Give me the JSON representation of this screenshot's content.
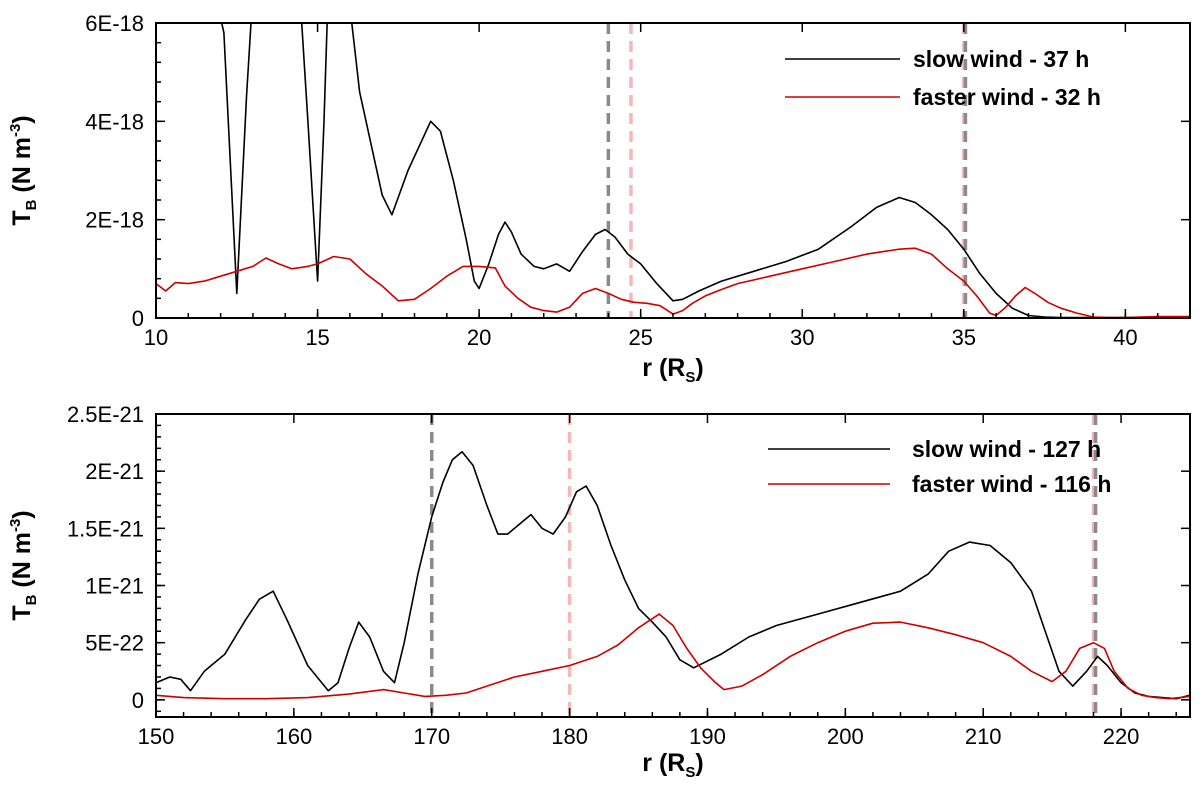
{
  "chart_data": [
    {
      "type": "line",
      "xlabel": "r",
      "xlabel_sub": "S",
      "xlabel_unit_open": "(R",
      "xlabel_unit_close": ")",
      "ylabel": "T",
      "ylabel_sub": "B",
      "ylabel_unit": "(N m",
      "ylabel_exp": "-3",
      "ylabel_close": ")",
      "xlim": [
        10,
        42
      ],
      "ylim": [
        0,
        6e-18
      ],
      "xticks": [
        10,
        15,
        20,
        25,
        30,
        35,
        40
      ],
      "xtick_labels": [
        "10",
        "15",
        "20",
        "25",
        "30",
        "35",
        "40"
      ],
      "yticks": [
        0,
        2e-18,
        4e-18,
        6e-18
      ],
      "ytick_labels": [
        "0",
        "2E-18",
        "4E-18",
        "6E-18"
      ],
      "legend_position": "top-right",
      "vlines": [
        {
          "x": 24.0,
          "color": "#8a8a8a"
        },
        {
          "x": 24.7,
          "color": "#f4b8b8"
        },
        {
          "x": 35.0,
          "color": "#f4b8b8"
        },
        {
          "x": 35.05,
          "color": "#8a8a8a"
        }
      ],
      "series": [
        {
          "name": "slow wind - 37 h",
          "color": "#000000",
          "x": [
            12.0,
            12.1,
            12.5,
            12.8,
            12.95,
            13.5,
            14.5,
            14.7,
            15.0,
            15.2,
            15.3,
            15.5,
            16.0,
            16.05,
            16.3,
            16.7,
            17.0,
            17.3,
            17.8,
            18.5,
            18.8,
            19.2,
            19.6,
            19.85,
            20.0,
            20.3,
            20.6,
            20.8,
            21.0,
            21.3,
            21.7,
            22.0,
            22.4,
            22.8,
            23.2,
            23.6,
            23.9,
            24.2,
            24.6,
            25.0,
            25.5,
            26.0,
            26.3,
            26.8,
            27.5,
            28.5,
            29.5,
            30.5,
            31.5,
            32.3,
            33.0,
            33.5,
            34.0,
            34.5,
            35.0,
            35.5,
            36.0,
            36.5,
            37.0,
            37.5,
            38.0,
            39.0,
            40.0,
            41.0,
            42.0
          ],
          "y": [
            6.1e-18,
            5.8e-18,
            5e-19,
            4.5e-18,
            6.1e-18,
            6.1e-18,
            6.1e-18,
            4e-18,
            7.5e-19,
            4e-18,
            6.1e-18,
            6.1e-18,
            6.1e-18,
            6.05e-18,
            4.6e-18,
            3.4e-18,
            2.5e-18,
            2.1e-18,
            3e-18,
            4e-18,
            3.8e-18,
            2.8e-18,
            1.6e-18,
            7.5e-19,
            6e-19,
            1.1e-18,
            1.7e-18,
            1.95e-18,
            1.75e-18,
            1.3e-18,
            1.05e-18,
            1e-18,
            1.1e-18,
            9.5e-19,
            1.35e-18,
            1.7e-18,
            1.8e-18,
            1.65e-18,
            1.3e-18,
            1.1e-18,
            7e-19,
            3.5e-19,
            3.8e-19,
            5.5e-19,
            7.5e-19,
            9.5e-19,
            1.15e-18,
            1.4e-18,
            1.85e-18,
            2.25e-18,
            2.45e-18,
            2.35e-18,
            2.1e-18,
            1.8e-18,
            1.4e-18,
            9e-19,
            5e-19,
            2e-19,
            5e-20,
            2e-20,
            1e-20,
            1e-20,
            1e-20,
            1e-20,
            1e-20
          ]
        },
        {
          "name": "faster wind - 32 h",
          "color": "#cc0000",
          "x": [
            10.0,
            10.3,
            10.6,
            11.0,
            11.5,
            12.0,
            12.5,
            13.0,
            13.4,
            13.8,
            14.2,
            14.7,
            15.0,
            15.5,
            16.0,
            16.5,
            17.0,
            17.5,
            18.0,
            18.5,
            19.0,
            19.5,
            20.0,
            20.5,
            20.8,
            21.2,
            21.6,
            22.0,
            22.4,
            22.8,
            23.2,
            23.6,
            24.0,
            24.4,
            24.8,
            25.2,
            25.6,
            26.0,
            26.3,
            26.6,
            27.0,
            27.5,
            28.0,
            29.0,
            30.0,
            31.0,
            32.0,
            33.0,
            33.5,
            34.0,
            34.5,
            35.0,
            35.4,
            35.8,
            36.0,
            36.3,
            36.6,
            36.9,
            37.2,
            37.6,
            38.0,
            38.5,
            39.0,
            39.5,
            40.0,
            41.0,
            42.0
          ],
          "y": [
            7e-19,
            5.5e-19,
            7.2e-19,
            7e-19,
            7.5e-19,
            8.5e-19,
            9.5e-19,
            1.05e-18,
            1.22e-18,
            1.1e-18,
            1e-18,
            1.05e-18,
            1.1e-18,
            1.25e-18,
            1.2e-18,
            9e-19,
            6.5e-19,
            3.5e-19,
            3.8e-19,
            6e-19,
            8.5e-19,
            1.05e-18,
            1.05e-18,
            1.02e-18,
            6.5e-19,
            4e-19,
            2.2e-19,
            1.5e-19,
            1.2e-19,
            2.2e-19,
            5e-19,
            6e-19,
            5e-19,
            3.8e-19,
            3.2e-19,
            3e-19,
            2.5e-19,
            8e-20,
            1.5e-19,
            3e-19,
            4.5e-19,
            5.8e-19,
            7e-19,
            8.5e-19,
            1e-18,
            1.15e-18,
            1.3e-18,
            1.4e-18,
            1.42e-18,
            1.3e-18,
            1e-18,
            7.5e-19,
            4.5e-19,
            1e-19,
            5e-20,
            2.2e-19,
            4.5e-19,
            6.2e-19,
            5e-19,
            3.2e-19,
            2e-19,
            1e-19,
            2e-20,
            1e-20,
            1e-20,
            3e-20,
            3e-20
          ]
        }
      ]
    },
    {
      "type": "line",
      "xlabel": "r",
      "xlabel_sub": "S",
      "xlabel_unit_open": "(R",
      "xlabel_unit_close": ")",
      "ylabel": "T",
      "ylabel_sub": "B",
      "ylabel_unit": "(N m",
      "ylabel_exp": "-3",
      "ylabel_close": ")",
      "xlim": [
        150,
        225
      ],
      "ylim": [
        -1.5e-22,
        2.5e-21
      ],
      "xticks": [
        150,
        160,
        170,
        180,
        190,
        200,
        210,
        220
      ],
      "xtick_labels": [
        "150",
        "160",
        "170",
        "180",
        "190",
        "200",
        "210",
        "220"
      ],
      "yticks": [
        0,
        5e-22,
        1e-21,
        1.5e-21,
        2e-21,
        2.5e-21
      ],
      "ytick_labels": [
        "0",
        "5E-22",
        "1E-21",
        "1.5E-21",
        "2E-21",
        "2.5E-21"
      ],
      "legend_position": "top-right",
      "vlines": [
        {
          "x": 170.0,
          "color": "#8a8a8a"
        },
        {
          "x": 180.0,
          "color": "#f4b8b8"
        },
        {
          "x": 218.0,
          "color": "#f4b8b8"
        },
        {
          "x": 218.15,
          "color": "#8a8a8a"
        }
      ],
      "series": [
        {
          "name": "slow wind - 127 h",
          "color": "#000000",
          "x": [
            150.0,
            151.0,
            151.8,
            152.5,
            153.5,
            155.0,
            156.5,
            157.5,
            158.5,
            159.5,
            161.0,
            162.5,
            163.2,
            164.0,
            164.7,
            165.5,
            166.5,
            167.3,
            168.0,
            169.0,
            170.0,
            170.8,
            171.5,
            172.2,
            173.0,
            174.0,
            174.8,
            175.5,
            176.5,
            177.2,
            178.0,
            178.8,
            179.7,
            180.5,
            181.2,
            182.0,
            183.0,
            184.0,
            185.0,
            186.0,
            187.0,
            188.0,
            189.0,
            191.0,
            193.0,
            195.0,
            198.0,
            201.0,
            204.0,
            206.0,
            207.5,
            209.0,
            210.5,
            212.0,
            213.5,
            214.5,
            215.5,
            216.5,
            217.5,
            218.3,
            219.0,
            220.0,
            221.0,
            222.0,
            223.0,
            224.0,
            225.0
          ],
          "y": [
            1.5e-22,
            2e-22,
            1.8e-22,
            8e-23,
            2.5e-22,
            4e-22,
            7e-22,
            8.8e-22,
            9.5e-22,
            7e-22,
            3e-22,
            8e-23,
            1.5e-22,
            4.5e-22,
            6.8e-22,
            5.5e-22,
            2.5e-22,
            1.5e-22,
            5e-22,
            1.1e-21,
            1.6e-21,
            1.9e-21,
            2.1e-21,
            2.17e-21,
            2.05e-21,
            1.7e-21,
            1.45e-21,
            1.45e-21,
            1.55e-21,
            1.62e-21,
            1.5e-21,
            1.45e-21,
            1.6e-21,
            1.82e-21,
            1.87e-21,
            1.7e-21,
            1.35e-21,
            1.05e-21,
            8e-22,
            6.8e-22,
            5.5e-22,
            3.5e-22,
            2.8e-22,
            4e-22,
            5.5e-22,
            6.5e-22,
            7.5e-22,
            8.5e-22,
            9.5e-22,
            1.1e-21,
            1.3e-21,
            1.38e-21,
            1.35e-21,
            1.2e-21,
            9.5e-22,
            6e-22,
            2.5e-22,
            1.2e-22,
            2.5e-22,
            3.8e-22,
            3e-22,
            1.5e-22,
            6e-23,
            3e-23,
            2e-23,
            1e-23,
            4e-23
          ]
        },
        {
          "name": "faster wind - 116 h",
          "color": "#cc0000",
          "x": [
            150.0,
            152.0,
            155.0,
            158.0,
            161.0,
            164.0,
            166.5,
            168.0,
            169.5,
            171.0,
            172.5,
            174.0,
            176.0,
            178.0,
            180.0,
            182.0,
            183.5,
            185.0,
            186.5,
            187.5,
            188.5,
            189.5,
            190.5,
            191.2,
            192.5,
            194.0,
            196.0,
            198.0,
            200.0,
            202.0,
            204.0,
            206.0,
            208.0,
            210.0,
            212.0,
            213.5,
            215.0,
            216.0,
            217.0,
            218.0,
            218.8,
            219.5,
            220.5,
            221.5,
            222.5,
            223.5,
            225.0
          ],
          "y": [
            4e-23,
            2e-23,
            1e-23,
            1e-23,
            2e-23,
            5e-23,
            9e-23,
            6e-23,
            3e-23,
            4e-23,
            6e-23,
            1.2e-22,
            2e-22,
            2.5e-22,
            3e-22,
            3.8e-22,
            4.8e-22,
            6.3e-22,
            7.5e-22,
            6.5e-22,
            4.5e-22,
            2.8e-22,
            1.6e-22,
            9e-23,
            1.2e-22,
            2.2e-22,
            3.8e-22,
            5e-22,
            6e-22,
            6.7e-22,
            6.8e-22,
            6.3e-22,
            5.7e-22,
            5e-22,
            3.8e-22,
            2.5e-22,
            1.6e-22,
            2.5e-22,
            4.5e-22,
            5e-22,
            4.5e-22,
            2.5e-22,
            1e-22,
            4e-23,
            2e-23,
            1e-23,
            3e-23
          ]
        }
      ]
    }
  ]
}
